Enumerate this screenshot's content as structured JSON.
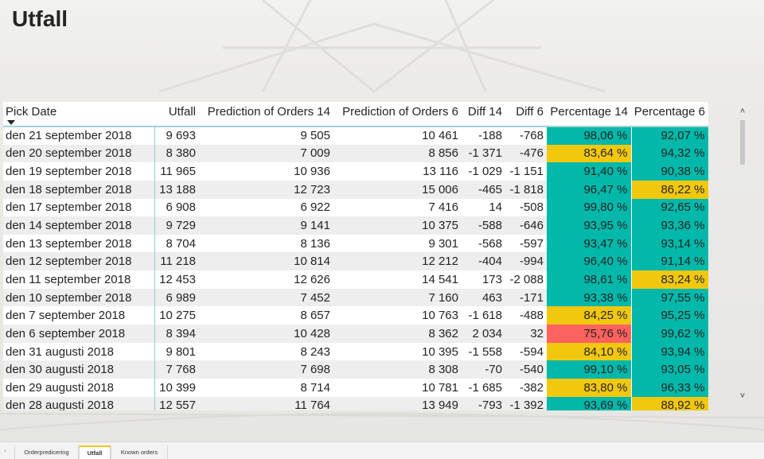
{
  "page": {
    "title": "Utfall"
  },
  "table": {
    "columns": [
      "Pick Date",
      "Utfall",
      "Prediction of Orders 14",
      "Prediction of Orders 6",
      "Diff 14",
      "Diff 6",
      "Percentage 14",
      "Percentage 6"
    ],
    "sorted_column": "Pick Date",
    "sort_direction": "descending",
    "status_colors": {
      "green": "#01b8aa",
      "yellow": "#f2c80f",
      "red": "#fd625e"
    },
    "rows": [
      {
        "date": "den 21 september 2018",
        "utfall": "9 693",
        "pred14": "9 505",
        "pred6": "10 461",
        "diff14": "-188",
        "diff6": "-768",
        "pct14": "98,06 %",
        "pct14_status": "green",
        "pct6": "92,07 %",
        "pct6_status": "green"
      },
      {
        "date": "den 20 september 2018",
        "utfall": "8 380",
        "pred14": "7 009",
        "pred6": "8 856",
        "diff14": "-1 371",
        "diff6": "-476",
        "pct14": "83,64 %",
        "pct14_status": "yellow",
        "pct6": "94,32 %",
        "pct6_status": "green"
      },
      {
        "date": "den 19 september 2018",
        "utfall": "11 965",
        "pred14": "10 936",
        "pred6": "13 116",
        "diff14": "-1 029",
        "diff6": "-1 151",
        "pct14": "91,40 %",
        "pct14_status": "green",
        "pct6": "90,38 %",
        "pct6_status": "green"
      },
      {
        "date": "den 18 september 2018",
        "utfall": "13 188",
        "pred14": "12 723",
        "pred6": "15 006",
        "diff14": "-465",
        "diff6": "-1 818",
        "pct14": "96,47 %",
        "pct14_status": "green",
        "pct6": "86,22 %",
        "pct6_status": "yellow"
      },
      {
        "date": "den 17 september 2018",
        "utfall": "6 908",
        "pred14": "6 922",
        "pred6": "7 416",
        "diff14": "14",
        "diff6": "-508",
        "pct14": "99,80 %",
        "pct14_status": "green",
        "pct6": "92,65 %",
        "pct6_status": "green"
      },
      {
        "date": "den 14 september 2018",
        "utfall": "9 729",
        "pred14": "9 141",
        "pred6": "10 375",
        "diff14": "-588",
        "diff6": "-646",
        "pct14": "93,95 %",
        "pct14_status": "green",
        "pct6": "93,36 %",
        "pct6_status": "green"
      },
      {
        "date": "den 13 september 2018",
        "utfall": "8 704",
        "pred14": "8 136",
        "pred6": "9 301",
        "diff14": "-568",
        "diff6": "-597",
        "pct14": "93,47 %",
        "pct14_status": "green",
        "pct6": "93,14 %",
        "pct6_status": "green"
      },
      {
        "date": "den 12 september 2018",
        "utfall": "11 218",
        "pred14": "10 814",
        "pred6": "12 212",
        "diff14": "-404",
        "diff6": "-994",
        "pct14": "96,40 %",
        "pct14_status": "green",
        "pct6": "91,14 %",
        "pct6_status": "green"
      },
      {
        "date": "den 11 september 2018",
        "utfall": "12 453",
        "pred14": "12 626",
        "pred6": "14 541",
        "diff14": "173",
        "diff6": "-2 088",
        "pct14": "98,61 %",
        "pct14_status": "green",
        "pct6": "83,24 %",
        "pct6_status": "yellow"
      },
      {
        "date": "den 10 september 2018",
        "utfall": "6 989",
        "pred14": "7 452",
        "pred6": "7 160",
        "diff14": "463",
        "diff6": "-171",
        "pct14": "93,38 %",
        "pct14_status": "green",
        "pct6": "97,55 %",
        "pct6_status": "green"
      },
      {
        "date": "den 7 september 2018",
        "utfall": "10 275",
        "pred14": "8 657",
        "pred6": "10 763",
        "diff14": "-1 618",
        "diff6": "-488",
        "pct14": "84,25 %",
        "pct14_status": "yellow",
        "pct6": "95,25 %",
        "pct6_status": "green"
      },
      {
        "date": "den 6 september 2018",
        "utfall": "8 394",
        "pred14": "10 428",
        "pred6": "8 362",
        "diff14": "2 034",
        "diff6": "32",
        "pct14": "75,76 %",
        "pct14_status": "red",
        "pct6": "99,62 %",
        "pct6_status": "green"
      },
      {
        "date": "den 31 augusti 2018",
        "utfall": "9 801",
        "pred14": "8 243",
        "pred6": "10 395",
        "diff14": "-1 558",
        "diff6": "-594",
        "pct14": "84,10 %",
        "pct14_status": "yellow",
        "pct6": "93,94 %",
        "pct6_status": "green"
      },
      {
        "date": "den 30 augusti 2018",
        "utfall": "7 768",
        "pred14": "7 698",
        "pred6": "8 308",
        "diff14": "-70",
        "diff6": "-540",
        "pct14": "99,10 %",
        "pct14_status": "green",
        "pct6": "93,05 %",
        "pct6_status": "green"
      },
      {
        "date": "den 29 augusti 2018",
        "utfall": "10 399",
        "pred14": "8 714",
        "pred6": "10 781",
        "diff14": "-1 685",
        "diff6": "-382",
        "pct14": "83,80 %",
        "pct14_status": "yellow",
        "pct6": "96,33 %",
        "pct6_status": "green"
      },
      {
        "date": "den 28 augusti 2018",
        "utfall": "12 557",
        "pred14": "11 764",
        "pred6": "13 949",
        "diff14": "-793",
        "diff6": "-1 392",
        "pct14": "93,69 %",
        "pct14_status": "green",
        "pct6": "88,92 %",
        "pct6_status": "yellow"
      }
    ]
  },
  "scrollbar": {
    "up_icon": "chevron-up-icon",
    "down_icon": "chevron-down-icon"
  },
  "tabs": [
    {
      "label": "Orderpredicering",
      "active": false
    },
    {
      "label": "Utfall",
      "active": true
    },
    {
      "label": "Known orders",
      "active": false
    }
  ]
}
